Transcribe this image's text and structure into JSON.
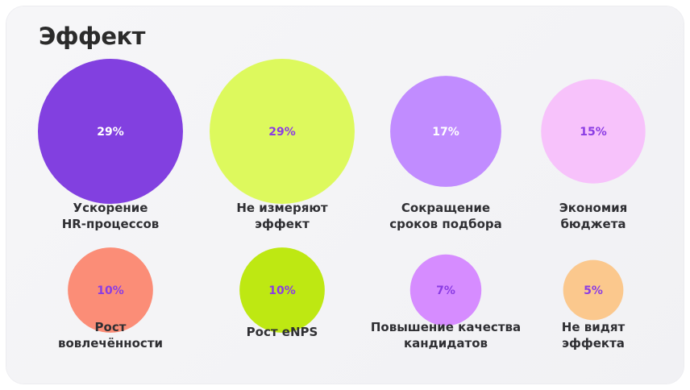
{
  "title": "Эффект",
  "chart_data": {
    "type": "bubble",
    "unit": "%",
    "items": [
      {
        "label": [
          "Ускорение",
          "HR-процессов"
        ],
        "value": 29,
        "value_label": "29%",
        "color": "#8240e0",
        "value_color": "#ffffff"
      },
      {
        "label": [
          "Не измеряют",
          "эффект"
        ],
        "value": 29,
        "value_label": "29%",
        "color": "#ddf95d",
        "value_color": "#8b3de3"
      },
      {
        "label": [
          "Сокращение",
          "сроков подбора"
        ],
        "value": 17,
        "value_label": "17%",
        "color": "#c18cff",
        "value_color": "#ffffff"
      },
      {
        "label": [
          "Экономия",
          "бюджета"
        ],
        "value": 15,
        "value_label": "15%",
        "color": "#f7c2fb",
        "value_color": "#8b3de3"
      },
      {
        "label": [
          "Рост",
          "вовлечённости"
        ],
        "value": 10,
        "value_label": "10%",
        "color": "#fb8d77",
        "value_color": "#8b3de3"
      },
      {
        "label": [
          "Рост eNPS"
        ],
        "value": 10,
        "value_label": "10%",
        "color": "#bee812",
        "value_color": "#8b3de3"
      },
      {
        "label": [
          "Повышение качества",
          "кандидатов"
        ],
        "value": 7,
        "value_label": "7%",
        "color": "#d68cff",
        "value_color": "#8b3de3"
      },
      {
        "label": [
          "Не видят",
          "эффекта"
        ],
        "value": 5,
        "value_label": "5%",
        "color": "#fbc88d",
        "value_color": "#8b3de3"
      }
    ]
  }
}
